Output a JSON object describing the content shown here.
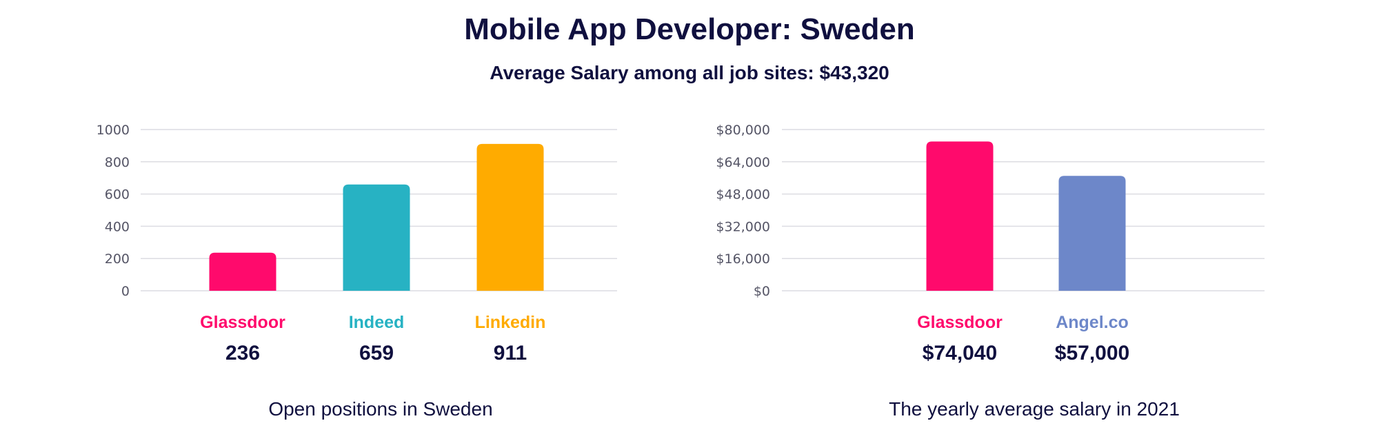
{
  "title": "Mobile App Developer: Sweden",
  "subtitle": "Average Salary among all job sites: $43,320",
  "chart_data": [
    {
      "type": "bar",
      "categories": [
        "Glassdoor",
        "Indeed",
        "Linkedin"
      ],
      "values": [
        236,
        659,
        911
      ],
      "value_labels": [
        "236",
        "659",
        "911"
      ],
      "colors": [
        "#ff0a6c",
        "#27b2c3",
        "#ffab00"
      ],
      "ylim": [
        0,
        1000
      ],
      "yticks": [
        0,
        200,
        400,
        600,
        800,
        1000
      ],
      "ytick_labels": [
        "0",
        "200",
        "400",
        "600",
        "800",
        "1000"
      ],
      "grid": true,
      "caption": "Open positions in Sweden"
    },
    {
      "type": "bar",
      "categories": [
        "Glassdoor",
        "Angel.co"
      ],
      "values": [
        74040,
        57000
      ],
      "value_labels": [
        "$74,040",
        "$57,000"
      ],
      "colors": [
        "#ff0a6c",
        "#6d87c9"
      ],
      "ylim": [
        0,
        80000
      ],
      "yticks": [
        0,
        16000,
        32000,
        48000,
        64000,
        80000
      ],
      "ytick_labels": [
        "$0",
        "$16,000",
        "$32,000",
        "$48,000",
        "$64,000",
        "$80,000"
      ],
      "grid": true,
      "caption": "The yearly average salary in 2021"
    }
  ]
}
